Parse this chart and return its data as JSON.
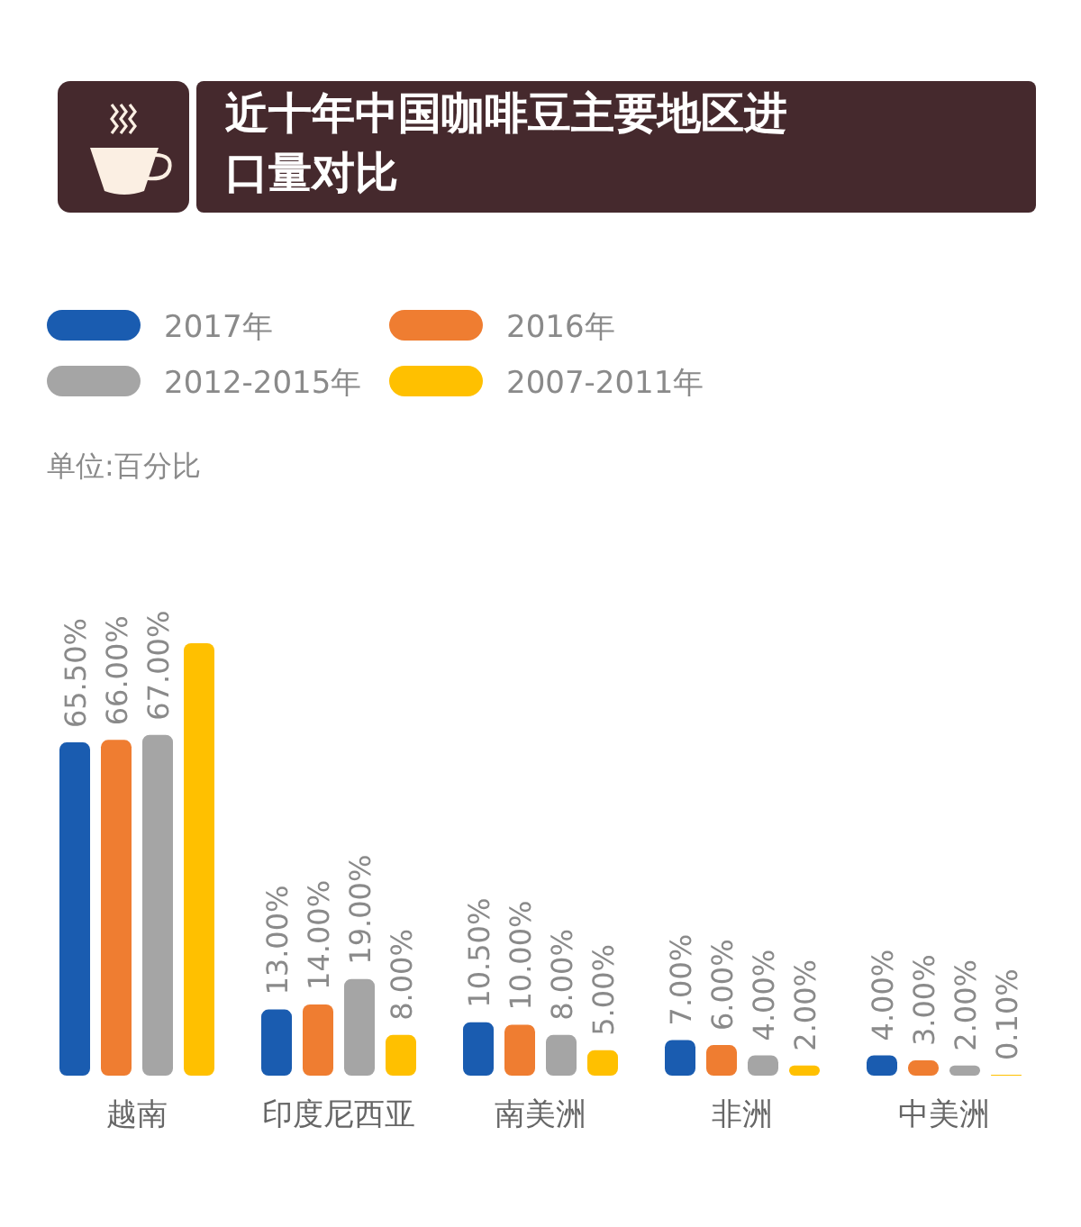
{
  "chart_data": {
    "type": "bar",
    "title": "近十年中国咖啡豆主要地区进口量对比",
    "categories": [
      "越南",
      "印度尼西亚",
      "南美洲",
      "非洲",
      "中美洲"
    ],
    "series": [
      {
        "name": "2017年",
        "color": "#1a5cb0",
        "values": [
          65.5,
          13,
          10.5,
          7,
          4
        ],
        "value_labels": [
          "65.50%",
          "13.00%",
          "10.50%",
          "7.00%",
          "4.00%"
        ]
      },
      {
        "name": "2016年",
        "color": "#ef7d31",
        "values": [
          66,
          14,
          10,
          6,
          3
        ],
        "value_labels": [
          "66.00%",
          "14.00%",
          "10.00%",
          "6.00%",
          "3.00%"
        ]
      },
      {
        "name": "2012-2015年",
        "color": "#a5a5a5",
        "values": [
          67,
          19,
          8,
          4,
          2
        ],
        "value_labels": [
          "67.00%",
          "19.00%",
          "8.00%",
          "4.00%",
          "2.00%"
        ]
      },
      {
        "name": "2007-2011年",
        "color": "#ffc000",
        "values": [
          85,
          8,
          5,
          2,
          0.1
        ],
        "value_labels": [
          null,
          "8.00%",
          "5.00%",
          "2.00%",
          "0.10%"
        ]
      }
    ],
    "annotations": [
      "单位:百分比"
    ],
    "legend": "top"
  }
}
